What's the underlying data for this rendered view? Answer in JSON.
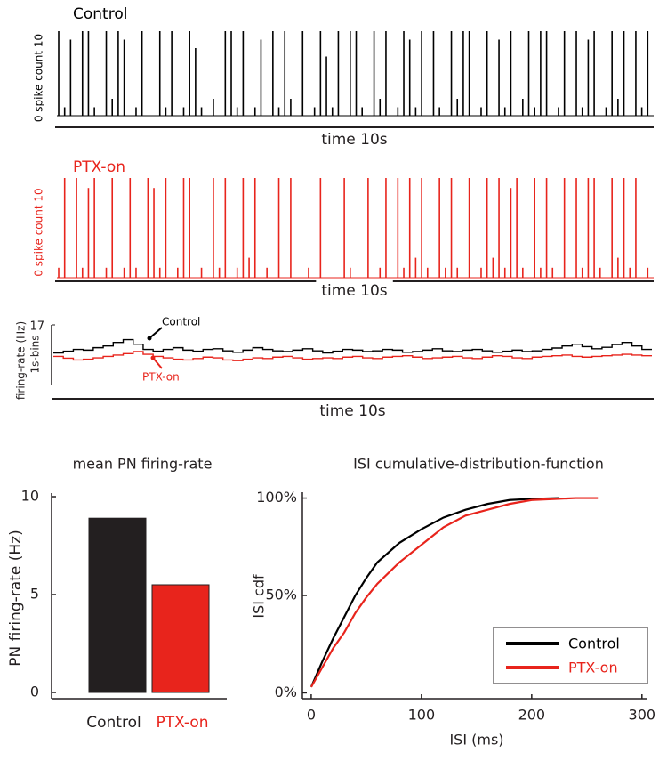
{
  "chart_data": [
    {
      "type": "spike-train",
      "title": "Control",
      "ylabel": "0 spike count 10",
      "xlabel": "time 10s",
      "color": "#000000",
      "ylim": [
        0,
        10
      ],
      "values": [
        10,
        1,
        9,
        0,
        10,
        10,
        1,
        0,
        10,
        2,
        10,
        9,
        0,
        1,
        10,
        0,
        0,
        10,
        1,
        10,
        0,
        1,
        10,
        8,
        1,
        0,
        2,
        0,
        10,
        10,
        1,
        10,
        0,
        1,
        9,
        0,
        10,
        1,
        10,
        2,
        0,
        10,
        0,
        1,
        10,
        7,
        1,
        10,
        0,
        10,
        10,
        1,
        0,
        10,
        2,
        10,
        0,
        1,
        10,
        9,
        1,
        10,
        0,
        10,
        1,
        0,
        10,
        2,
        10,
        10,
        0,
        1,
        10,
        0,
        9,
        1,
        10,
        0,
        2,
        10,
        1,
        10,
        10,
        0,
        1,
        10,
        0,
        10,
        1,
        9,
        10,
        0,
        1,
        10,
        2,
        10,
        0,
        10,
        1,
        10
      ]
    },
    {
      "type": "spike-train",
      "title": "PTX-on",
      "ylabel": "0 spike count 10",
      "xlabel": "time 10s",
      "color": "#e8241c",
      "ylim": [
        0,
        10
      ],
      "values": [
        1,
        10,
        0,
        10,
        1,
        9,
        10,
        0,
        1,
        10,
        0,
        1,
        10,
        1,
        0,
        10,
        9,
        1,
        10,
        0,
        1,
        10,
        10,
        0,
        1,
        0,
        10,
        1,
        10,
        0,
        1,
        10,
        2,
        10,
        0,
        1,
        0,
        10,
        0,
        10,
        0,
        0,
        1,
        0,
        10,
        0,
        0,
        0,
        10,
        1,
        0,
        0,
        10,
        0,
        1,
        10,
        0,
        10,
        1,
        10,
        2,
        10,
        1,
        0,
        10,
        1,
        10,
        1,
        0,
        10,
        0,
        1,
        10,
        2,
        10,
        1,
        9,
        10,
        1,
        0,
        10,
        1,
        10,
        1,
        0,
        10,
        0,
        10,
        1,
        10,
        10,
        1,
        0,
        10,
        2,
        10,
        1,
        10,
        0,
        1
      ]
    },
    {
      "type": "step",
      "ylabel": "firing-rate (Hz)",
      "ylabel_2": "1s-bins",
      "xlabel": "time 10s",
      "ylim": [
        0,
        17
      ],
      "yticks": [
        17
      ],
      "annotations": [
        "Control",
        "PTX-on"
      ],
      "series": [
        {
          "name": "Control",
          "color": "#000000",
          "values": [
            9,
            9.5,
            10,
            9.8,
            10.5,
            11,
            12,
            12.8,
            11.5,
            10,
            9.5,
            10,
            10.5,
            9.8,
            9.5,
            10,
            10.2,
            9.6,
            9.2,
            9.8,
            10.5,
            10,
            9.6,
            9.4,
            9.8,
            10.2,
            9.6,
            9,
            9.5,
            10,
            9.8,
            9.4,
            9.6,
            10,
            9.8,
            9.2,
            9.4,
            9.8,
            10.2,
            9.6,
            9.4,
            9.8,
            10,
            9.6,
            9.2,
            9.5,
            9.8,
            9.4,
            9.6,
            10,
            10.4,
            11,
            11.5,
            10.8,
            10.2,
            10.6,
            11.4,
            12,
            11,
            10
          ]
        },
        {
          "name": "PTX-on",
          "color": "#e8241c",
          "values": [
            8,
            7.5,
            7,
            7.2,
            7.6,
            8,
            8.4,
            8.8,
            9.4,
            8.6,
            8,
            7.6,
            7.2,
            7,
            7.4,
            7.8,
            7.6,
            7,
            6.8,
            7.2,
            7.6,
            7.4,
            7.8,
            8,
            7.6,
            7.2,
            7.4,
            7.6,
            7.4,
            7.8,
            8,
            7.6,
            7.4,
            7.8,
            8,
            8.2,
            7.8,
            7.4,
            7.6,
            7.8,
            8,
            7.6,
            7.4,
            7.8,
            8.2,
            8,
            7.6,
            7.4,
            7.8,
            8,
            8.2,
            8.4,
            8,
            7.8,
            8,
            8.2,
            8.4,
            8.6,
            8.4,
            8.2
          ]
        }
      ]
    },
    {
      "type": "bar",
      "title": "mean PN firing-rate",
      "ylabel": "PN firing-rate (Hz)",
      "categories": [
        "Control",
        "PTX-on"
      ],
      "values": [
        8.9,
        5.5
      ],
      "colors": [
        "#231f20",
        "#e8241c"
      ],
      "ylim": [
        0,
        10
      ],
      "yticks": [
        0,
        5,
        10
      ]
    },
    {
      "type": "line",
      "title": "ISI cumulative-distribution-function",
      "xlabel": "ISI (ms)",
      "ylabel": "ISI cdf",
      "xlim": [
        -8,
        305
      ],
      "xticks": [
        0,
        100,
        200,
        300
      ],
      "ylim": [
        -3,
        103
      ],
      "yticks": [
        {
          "value": 0,
          "label": "0%"
        },
        {
          "value": 50,
          "label": "50%"
        },
        {
          "value": 100,
          "label": "100%"
        }
      ],
      "legend": "lower right",
      "series": [
        {
          "name": "Control",
          "color": "#000000",
          "x": [
            0,
            10,
            20,
            30,
            40,
            50,
            60,
            80,
            100,
            120,
            140,
            160,
            180,
            200,
            225
          ],
          "values": [
            3,
            16,
            28,
            39,
            50,
            59,
            67,
            77,
            84,
            90,
            94,
            97,
            99,
            99.6,
            100
          ]
        },
        {
          "name": "PTX-on",
          "color": "#e8241c",
          "x": [
            0,
            10,
            20,
            30,
            40,
            50,
            60,
            80,
            100,
            120,
            140,
            160,
            180,
            200,
            220,
            240,
            260
          ],
          "values": [
            3,
            13,
            23,
            31,
            41,
            49,
            56,
            67,
            76,
            85,
            91,
            94,
            97,
            99,
            99.5,
            100,
            100
          ]
        }
      ]
    }
  ]
}
